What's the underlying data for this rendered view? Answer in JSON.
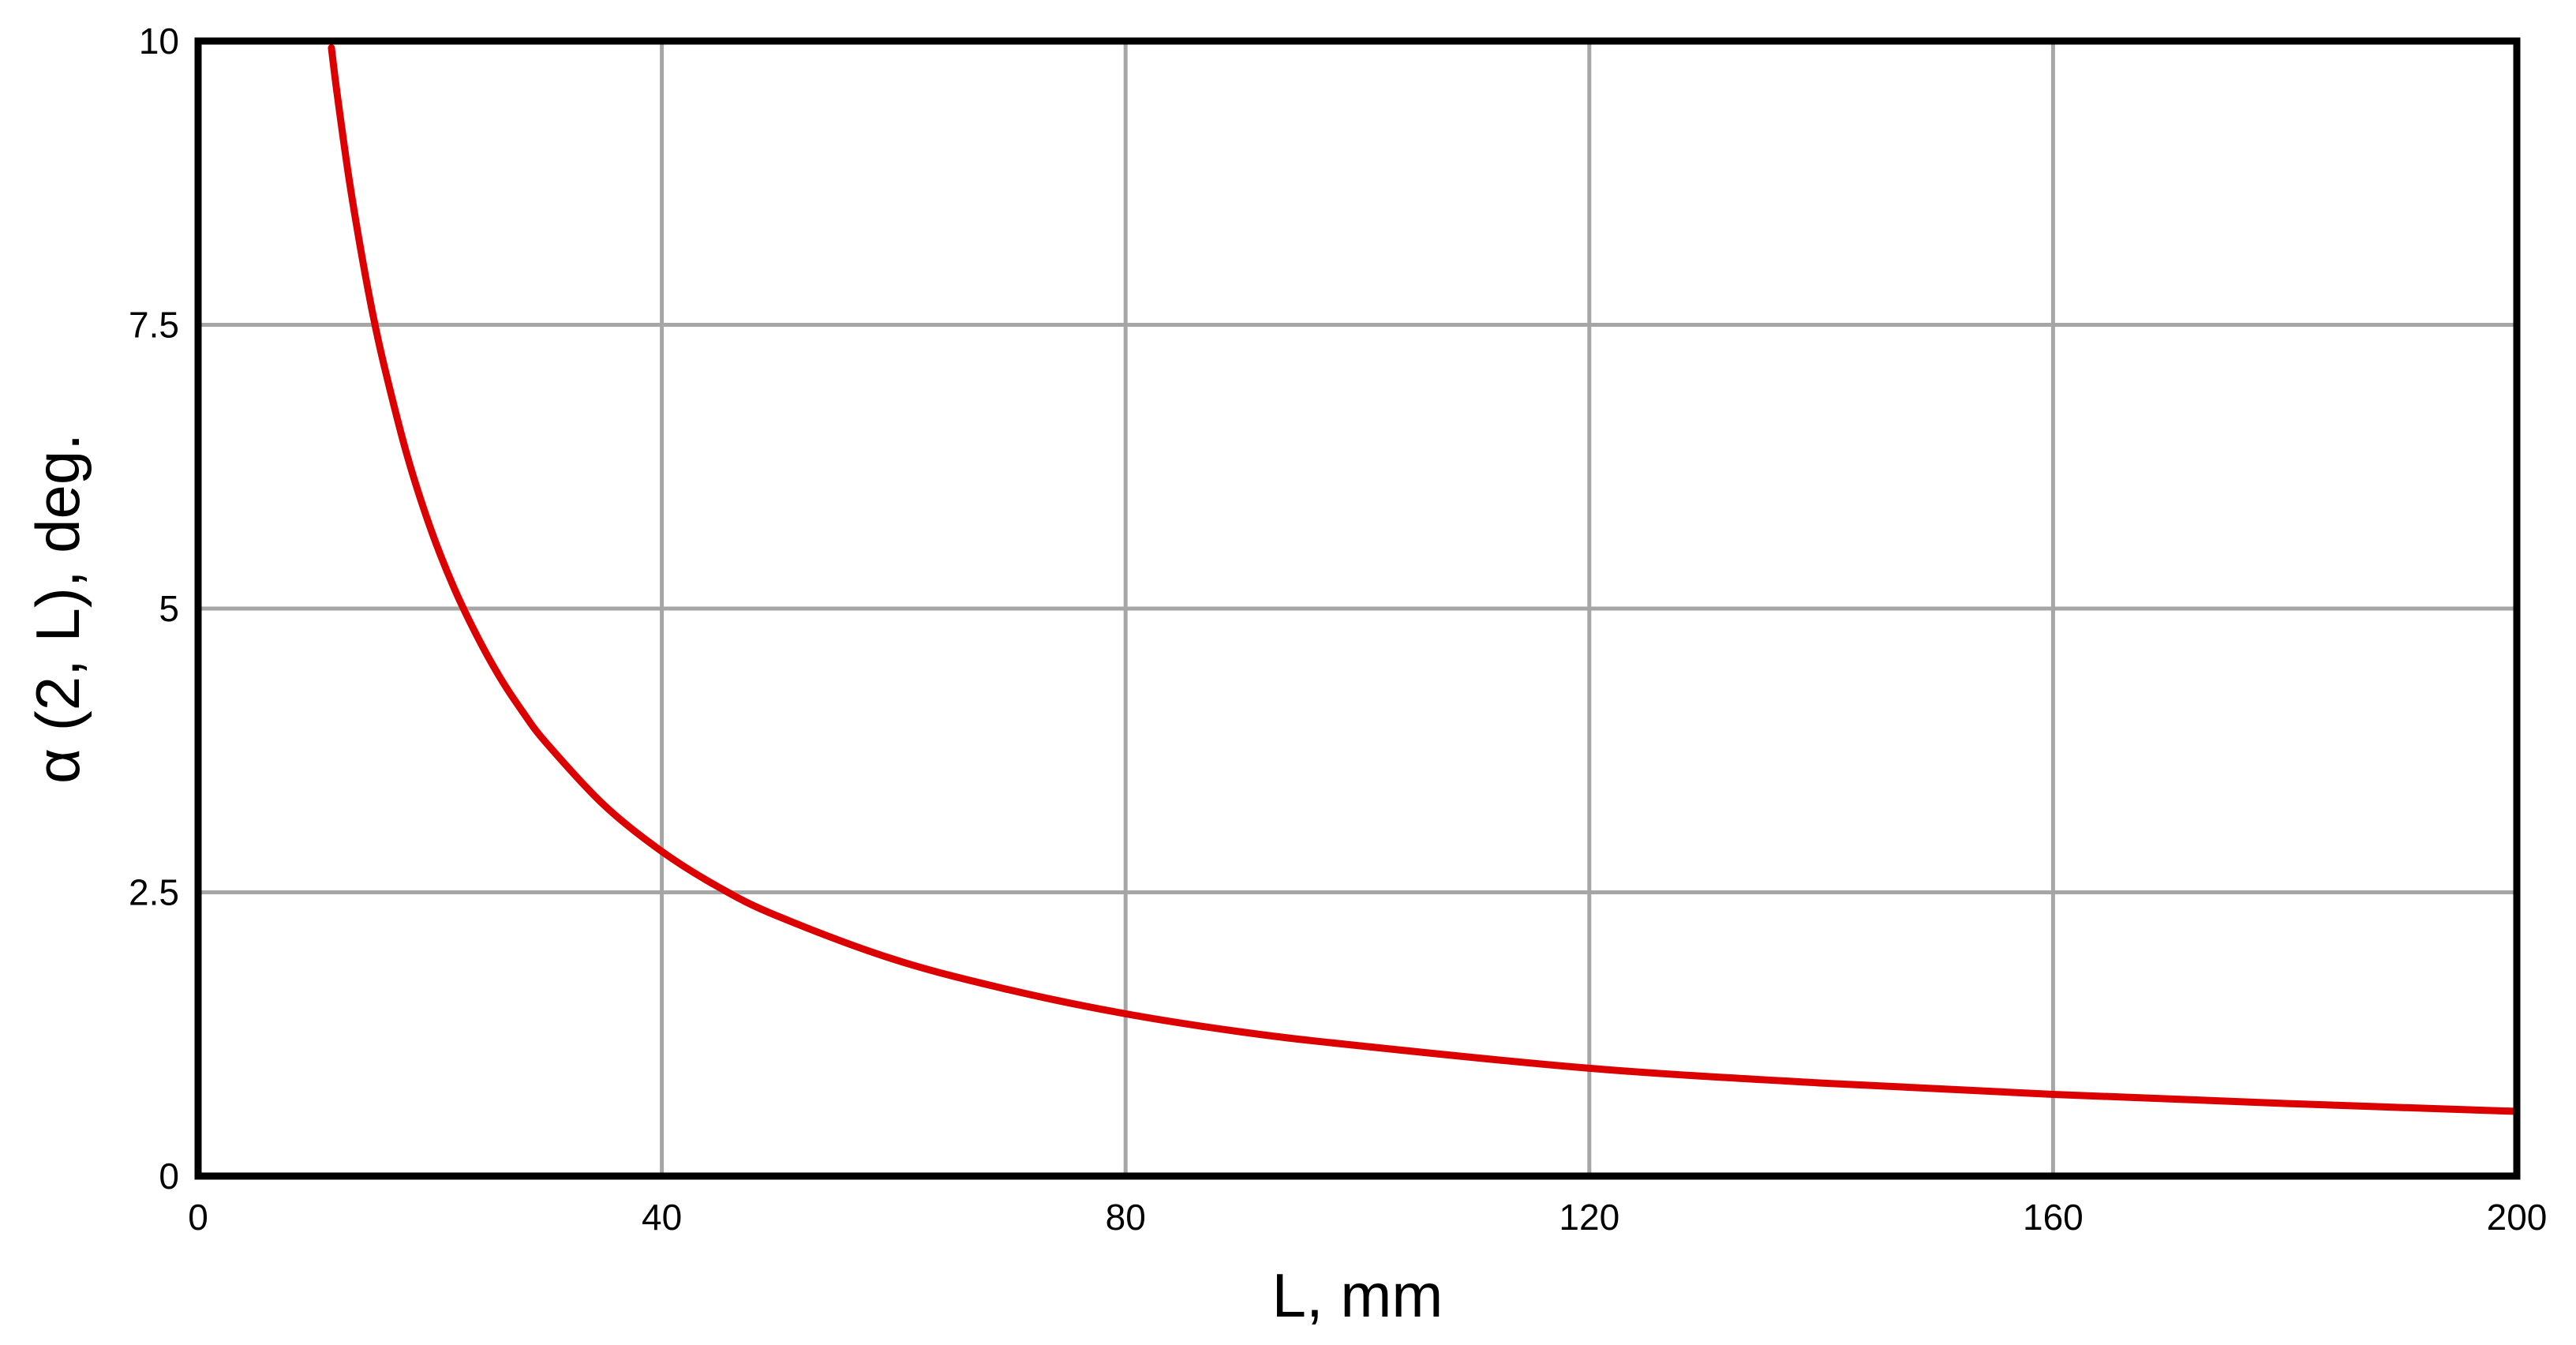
{
  "chart_data": {
    "type": "line",
    "title": "",
    "xlabel": "L, mm",
    "ylabel": "α (2, L), deg.",
    "xlim": [
      0,
      200
    ],
    "ylim": [
      0,
      10
    ],
    "x_ticks": [
      0,
      40,
      80,
      120,
      160,
      200
    ],
    "x_tick_labels": [
      "0",
      "40",
      "80",
      "120",
      "160",
      "200"
    ],
    "y_ticks": [
      0,
      2.5,
      5,
      7.5,
      10
    ],
    "y_tick_labels": [
      "0",
      "2.5",
      "5",
      "7.5",
      "10"
    ],
    "grid": true,
    "legend": "none",
    "series": [
      {
        "color": "#dd0000",
        "x": [
          11.5,
          12,
          13,
          14,
          15,
          16,
          18,
          20,
          22,
          24,
          26,
          28,
          30,
          35,
          40,
          45,
          50,
          60,
          70,
          80,
          90,
          100,
          120,
          140,
          160,
          180,
          200
        ],
        "y": [
          9.94,
          9.53,
          8.8,
          8.18,
          7.63,
          7.16,
          6.36,
          5.72,
          5.2,
          4.77,
          4.4,
          4.09,
          3.82,
          3.27,
          2.86,
          2.54,
          2.29,
          1.91,
          1.64,
          1.43,
          1.27,
          1.15,
          0.95,
          0.82,
          0.72,
          0.64,
          0.57
        ]
      }
    ],
    "colors": {
      "curve": "#dd0000",
      "grid": "#a6a6a6",
      "frame": "#000000"
    }
  }
}
